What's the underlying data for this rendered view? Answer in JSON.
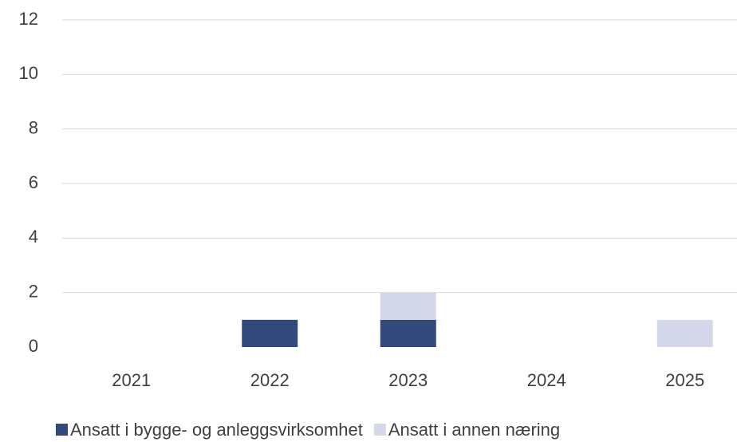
{
  "chart_data": {
    "type": "stacked_bar",
    "categories": [
      "2021",
      "2022",
      "2023",
      "2024",
      "2025"
    ],
    "series": [
      {
        "name": "Ansatt i bygge- og anleggsvirksomhet",
        "color": "#34497b",
        "values": [
          0,
          1,
          1,
          0,
          0
        ]
      },
      {
        "name": "Ansatt i annen næring",
        "color": "#d4d8ea",
        "values": [
          0,
          0,
          1,
          0,
          1
        ]
      }
    ],
    "ylim": [
      0,
      12
    ],
    "yticks": [
      0,
      2,
      4,
      6,
      8,
      10,
      12
    ],
    "grid": true,
    "legend": "bottom"
  }
}
